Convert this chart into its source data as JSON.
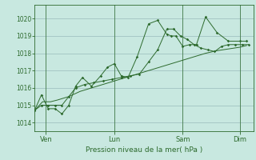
{
  "background_color": "#c8e8e0",
  "grid_color": "#99bbbb",
  "line_color": "#2d6a2d",
  "xlabel": "Pression niveau de la mer( hPa )",
  "yticks": [
    1014,
    1015,
    1016,
    1017,
    1018,
    1019,
    1020
  ],
  "ylim": [
    1013.5,
    1020.8
  ],
  "xtick_labels": [
    "Ven",
    "Lun",
    "Sam",
    "Dim"
  ],
  "xtick_positions": [
    0.5,
    3.5,
    6.5,
    9.0
  ],
  "xlim": [
    0.0,
    9.6
  ],
  "series1_x": [
    0.0,
    0.3,
    0.6,
    0.9,
    1.2,
    1.5,
    1.8,
    2.1,
    2.5,
    2.9,
    3.2,
    3.5,
    3.8,
    4.1,
    4.5,
    5.0,
    5.4,
    5.8,
    6.0,
    6.2,
    6.5,
    6.8,
    7.1,
    7.5,
    8.0,
    8.5,
    9.0,
    9.3
  ],
  "series1_y": [
    1014.7,
    1015.6,
    1014.8,
    1014.8,
    1014.5,
    1015.0,
    1016.1,
    1016.6,
    1016.1,
    1016.7,
    1017.2,
    1017.4,
    1016.7,
    1016.6,
    1017.8,
    1019.7,
    1019.9,
    1019.1,
    1019.0,
    1019.0,
    1018.4,
    1018.5,
    1018.5,
    1020.1,
    1019.2,
    1018.7,
    1018.7,
    1018.7
  ],
  "series2_x": [
    0.0,
    0.35,
    0.7,
    1.0,
    1.5,
    2.0,
    2.5,
    3.0,
    3.5,
    4.0,
    4.5,
    5.0,
    5.5,
    6.0,
    6.5,
    7.0,
    7.5,
    8.0,
    8.5,
    9.0,
    9.3
  ],
  "series2_y": [
    1014.7,
    1015.2,
    1015.2,
    1015.3,
    1015.5,
    1015.8,
    1016.0,
    1016.2,
    1016.4,
    1016.6,
    1016.8,
    1017.0,
    1017.2,
    1017.4,
    1017.6,
    1017.8,
    1018.0,
    1018.15,
    1018.25,
    1018.35,
    1018.45
  ],
  "series3_x": [
    0.0,
    0.3,
    0.6,
    0.9,
    1.2,
    1.5,
    1.8,
    2.2,
    2.6,
    3.0,
    3.4,
    3.8,
    4.2,
    4.6,
    5.0,
    5.4,
    5.8,
    6.1,
    6.4,
    6.7,
    7.0,
    7.3,
    7.6,
    7.9,
    8.2,
    8.5,
    8.8,
    9.1,
    9.4
  ],
  "series3_y": [
    1014.7,
    1015.0,
    1015.0,
    1015.0,
    1015.0,
    1015.5,
    1016.0,
    1016.2,
    1016.3,
    1016.4,
    1016.5,
    1016.6,
    1016.7,
    1016.8,
    1017.5,
    1018.2,
    1019.4,
    1019.4,
    1019.0,
    1018.8,
    1018.5,
    1018.3,
    1018.2,
    1018.1,
    1018.4,
    1018.5,
    1018.5,
    1018.5,
    1018.5
  ]
}
